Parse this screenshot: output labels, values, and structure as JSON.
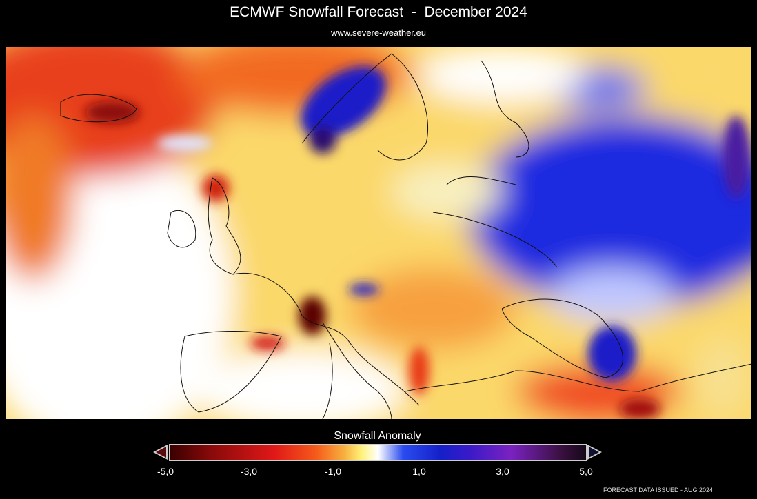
{
  "header": {
    "title": "ECMWF Snowfall Forecast  -  December 2024",
    "subtitle": "www.severe-weather.eu"
  },
  "colorbar": {
    "label": "Snowfall Anomaly",
    "ticks": [
      "-5,0",
      "-3,0",
      "-1,0",
      "1,0",
      "3,0",
      "5,0"
    ],
    "min": -5,
    "max": 5
  },
  "footer": "FORECAST DATA ISSUED - AUG 2024",
  "colors": {
    "deficit_strong": "#5a0000",
    "deficit": "#e01818",
    "neutral": "#ffffff",
    "surplus": "#1420c8",
    "surplus_strong": "#3a1040"
  }
}
